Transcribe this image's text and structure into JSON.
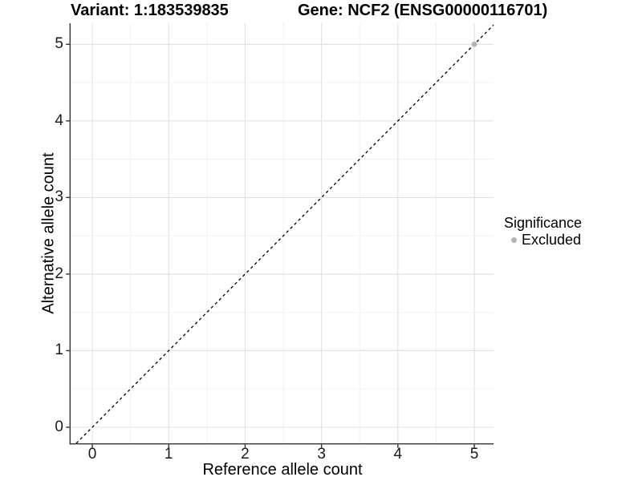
{
  "header": {
    "title_left": "Variant: 1:183539835",
    "title_right": "Gene: NCF2 (ENSG00000116701)"
  },
  "chart_data": {
    "type": "scatter",
    "title_left": "Variant: 1:183539835",
    "title_right": "Gene: NCF2 (ENSG00000116701)",
    "xlabel": "Reference allele count",
    "ylabel": "Alternative allele count",
    "xlim": [
      -0.284,
      5.252
    ],
    "ylim": [
      -0.21,
      5.275
    ],
    "x_ticks": [
      0,
      1,
      2,
      3,
      4,
      5
    ],
    "y_ticks": [
      0,
      1,
      2,
      3,
      4,
      5
    ],
    "x_minor_ticks": [
      0.5,
      1.5,
      2.5,
      3.5,
      4.5
    ],
    "y_minor_ticks": [
      0.5,
      1.5,
      2.5,
      3.5,
      4.5
    ],
    "grid": true,
    "reference_line": {
      "slope": 1,
      "intercept": 0,
      "style": "dashed"
    },
    "series": [
      {
        "name": "Excluded",
        "color": "#b3b3b3",
        "points": [
          {
            "x": 5,
            "y": 5
          }
        ]
      }
    ],
    "legend": {
      "position": "right",
      "title": "Significance",
      "items": [
        {
          "label": "Excluded",
          "color": "#b3b3b3"
        }
      ]
    }
  },
  "colors": {
    "background": "#ffffff",
    "axis_line": "#333333",
    "tick_mark": "#333333",
    "grid_major": "#e3e3e3",
    "grid_minor": "#f1f1f1",
    "reference_line": "#000000",
    "excluded_point": "#b3b3b3",
    "text": "#000000"
  }
}
